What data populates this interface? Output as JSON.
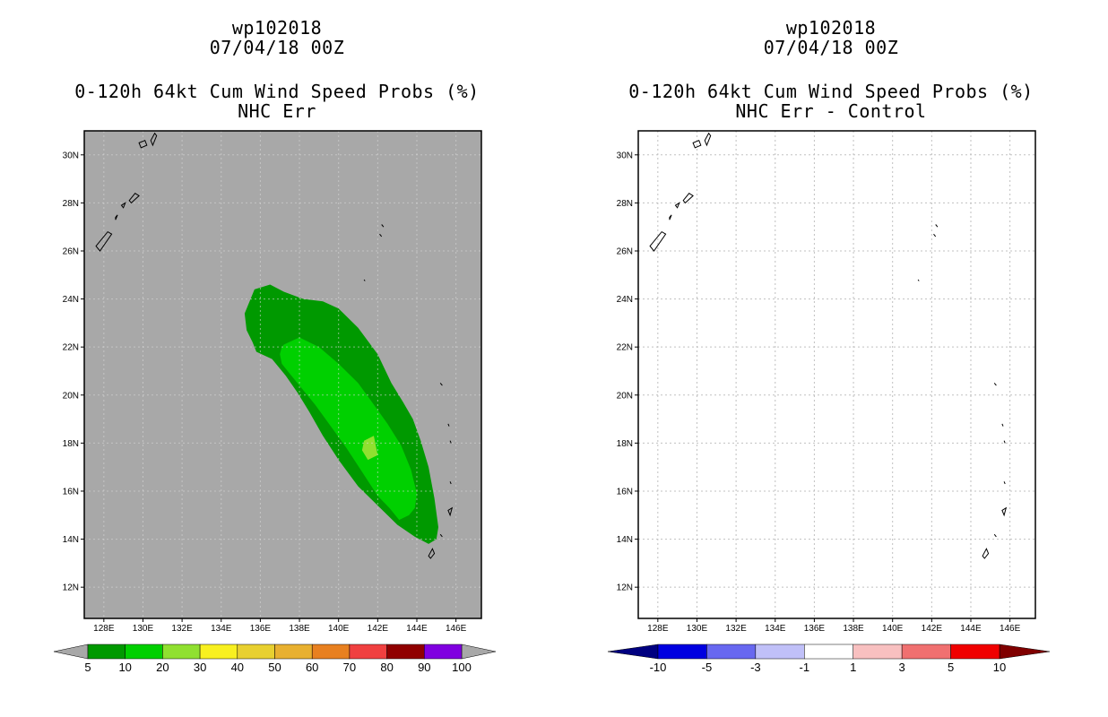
{
  "chart_data": [
    {
      "type": "contour-map",
      "title_lines": [
        "wp102018",
        "07/04/18 00Z"
      ],
      "subtitle_lines": [
        "0-120h 64kt Cum Wind Speed Probs (%)",
        "NHC Err"
      ],
      "x_ticks": [
        "128E",
        "130E",
        "132E",
        "134E",
        "136E",
        "138E",
        "140E",
        "142E",
        "144E",
        "146E"
      ],
      "y_ticks": [
        "30N",
        "28N",
        "26N",
        "24N",
        "22N",
        "20N",
        "18N",
        "16N",
        "14N",
        "12N"
      ],
      "xlim": [
        127,
        147.3
      ],
      "ylim": [
        10.7,
        31
      ],
      "grid": false,
      "background_color": "#a8a8a8",
      "colorbar": {
        "labels": [
          "5",
          "10",
          "20",
          "30",
          "40",
          "50",
          "60",
          "70",
          "80",
          "90",
          "100"
        ],
        "colors": [
          "#009900",
          "#00d000",
          "#90e030",
          "#f8f020",
          "#e8d030",
          "#e8b030",
          "#e88020",
          "#f04040",
          "#900000",
          "#8000e0"
        ],
        "end_color": "#a8a8a8"
      },
      "contours": [
        {
          "level": "5-10",
          "color": "#009900",
          "lon": [
            135.7,
            136.5,
            137.2,
            138.2,
            139.2,
            140,
            141,
            142,
            142.7,
            143.3,
            143.8,
            144.2,
            144.6,
            144.9,
            145.1,
            145,
            144.6,
            143.9,
            143,
            142,
            141,
            140,
            139.2,
            138.5,
            137.9,
            137.3,
            136.6,
            135.8,
            135.6,
            135.3,
            135.2,
            135.5
          ],
          "lat": [
            24.4,
            24.6,
            24.3,
            24.0,
            23.9,
            23.6,
            22.8,
            21.7,
            20.5,
            19.7,
            19.0,
            18.1,
            17.0,
            15.7,
            14.5,
            14.0,
            13.8,
            14.1,
            14.6,
            15.4,
            16.2,
            17.3,
            18.3,
            19.3,
            20.1,
            20.8,
            21.5,
            21.8,
            22.2,
            22.7,
            23.4,
            24.0
          ]
        },
        {
          "level": "10-20",
          "color": "#00d000",
          "lon": [
            137.2,
            138,
            139,
            140,
            141,
            141.8,
            142.5,
            143.2,
            143.7,
            144,
            143.9,
            143.6,
            143.1,
            142.6,
            142,
            141.2,
            140.4,
            139.6,
            138.8,
            138.1,
            137.5,
            137.1,
            137.0,
            137.1
          ],
          "lat": [
            22.1,
            22.4,
            22.0,
            21.3,
            20.5,
            19.6,
            18.8,
            17.9,
            16.9,
            15.9,
            15.3,
            15.0,
            14.8,
            15.3,
            15.8,
            16.8,
            17.8,
            18.7,
            19.6,
            20.3,
            20.9,
            21.3,
            21.7,
            22.0
          ]
        },
        {
          "level": "20-30",
          "color": "#90e030",
          "lon": [
            141.3,
            141.8,
            142.0,
            141.5,
            141.2
          ],
          "lat": [
            18.1,
            18.3,
            17.5,
            17.3,
            17.7
          ]
        }
      ]
    },
    {
      "type": "contour-map",
      "title_lines": [
        "wp102018",
        "07/04/18 00Z"
      ],
      "subtitle_lines": [
        "0-120h 64kt Cum Wind Speed Probs (%)",
        "NHC Err - Control"
      ],
      "x_ticks": [
        "128E",
        "130E",
        "132E",
        "134E",
        "136E",
        "138E",
        "140E",
        "142E",
        "144E",
        "146E"
      ],
      "y_ticks": [
        "30N",
        "28N",
        "26N",
        "24N",
        "22N",
        "20N",
        "18N",
        "16N",
        "14N",
        "12N"
      ],
      "xlim": [
        127,
        147.3
      ],
      "ylim": [
        10.7,
        31
      ],
      "grid": true,
      "background_color": "#ffffff",
      "colorbar": {
        "labels": [
          "-10",
          "-5",
          "-3",
          "-1",
          "1",
          "3",
          "5",
          "10"
        ],
        "colors": [
          "#0000e0",
          "#6868f0",
          "#c0c0f8",
          "#ffffff",
          "#f8c0c0",
          "#f07070",
          "#f00000"
        ],
        "start_color": "#000080",
        "end_color": "#800000"
      },
      "contours": []
    }
  ]
}
